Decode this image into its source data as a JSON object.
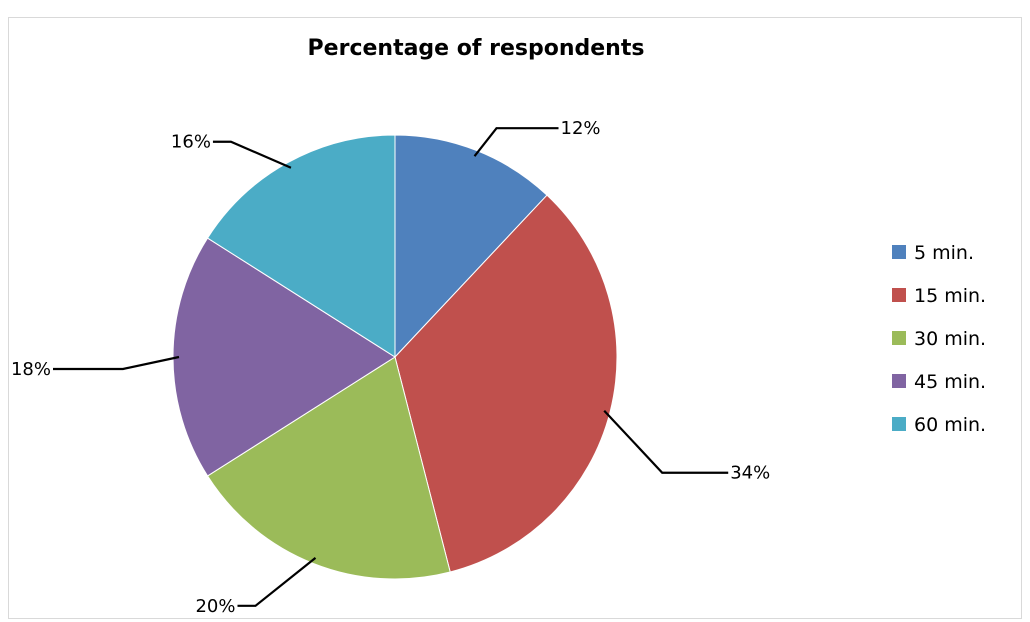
{
  "chart_data": {
    "type": "pie",
    "title": "Percentage of respondents",
    "categories": [
      "5 min.",
      "15 min.",
      "30 min.",
      "45 min.",
      "60 min."
    ],
    "values": [
      12,
      34,
      20,
      18,
      16
    ],
    "data_labels": [
      "12%",
      "34%",
      "20%",
      "18%",
      "16%"
    ],
    "colors": [
      "#4f81bd",
      "#c0504d",
      "#9bbb59",
      "#8064a2",
      "#4bacc6"
    ],
    "start_angle": "12 o'clock",
    "direction": "clockwise",
    "legend_position": "right",
    "grid": false
  }
}
